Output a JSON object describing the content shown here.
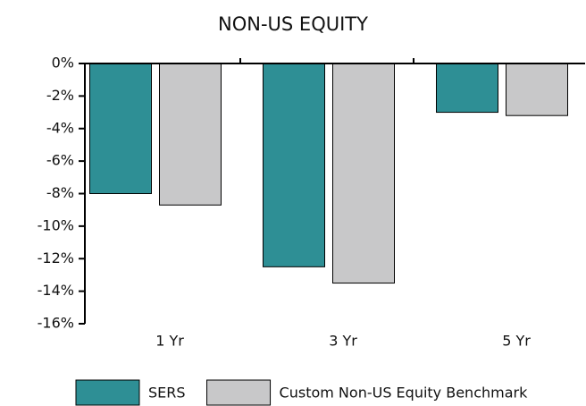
{
  "chart_data": {
    "type": "bar",
    "title": "NON-US EQUITY",
    "categories": [
      "1 Yr",
      "3 Yr",
      "5 Yr"
    ],
    "series": [
      {
        "name": "SERS",
        "color": "#2e8f95",
        "values": [
          -8.0,
          -12.5,
          -3.0
        ]
      },
      {
        "name": "Custom Non-US Equity Benchmark",
        "color": "#c8c8c9",
        "values": [
          -8.7,
          -13.5,
          -3.2
        ]
      }
    ],
    "ylim": [
      -16,
      0
    ],
    "yticks": [
      {
        "value": 0,
        "label": "0%"
      },
      {
        "value": -2,
        "label": "-2%"
      },
      {
        "value": -4,
        "label": "-4%"
      },
      {
        "value": -6,
        "label": "-6%"
      },
      {
        "value": -8,
        "label": "-8%"
      },
      {
        "value": -10,
        "label": "-10%"
      },
      {
        "value": -12,
        "label": "-12%"
      },
      {
        "value": -14,
        "label": "-14%"
      },
      {
        "value": -16,
        "label": "-16%"
      }
    ],
    "legend": "bottom",
    "grid": false
  }
}
